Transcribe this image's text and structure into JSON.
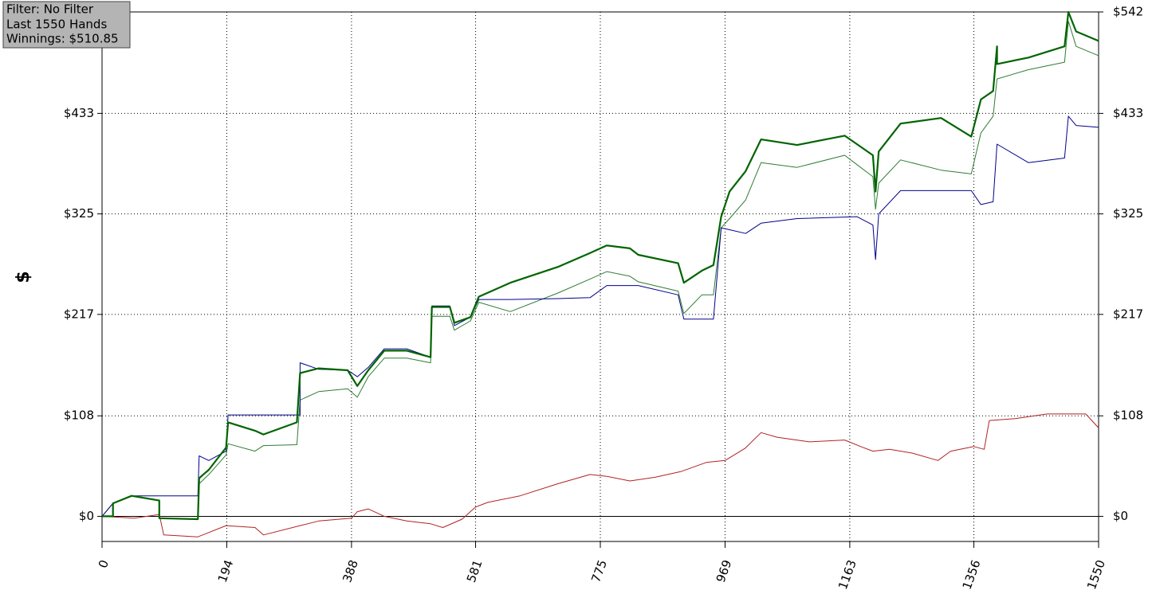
{
  "chart_data": {
    "type": "line",
    "annotations": [
      "Filter: No Filter",
      "Last 1550 Hands",
      "Winnings: $510.85"
    ],
    "y_label": "$",
    "xlim": [
      0,
      1550
    ],
    "xticks": [
      0,
      194,
      388,
      581,
      775,
      969,
      1163,
      1356,
      1550
    ],
    "ylim": [
      -27,
      542
    ],
    "yticks": [
      {
        "value": 0,
        "label": "$0"
      },
      {
        "value": 108,
        "label": "$108"
      },
      {
        "value": 217,
        "label": "$217"
      },
      {
        "value": 325,
        "label": "$325"
      },
      {
        "value": 433,
        "label": "$433"
      },
      {
        "value": 542,
        "label": "$542"
      }
    ],
    "zero_line": true,
    "grid": true,
    "series": [
      {
        "color": "#2e7d32",
        "line_width": 1,
        "x": [
          0,
          17,
          46,
          89,
          89,
          149,
          151,
          166,
          193,
          196,
          238,
          251,
          303,
          308,
          337,
          382,
          397,
          414,
          439,
          474,
          511,
          513,
          541,
          548,
          573,
          586,
          635,
          709,
          759,
          785,
          821,
          834,
          896,
          905,
          933,
          951,
          963,
          976,
          1001,
          1025,
          1081,
          1155,
          1174,
          1199,
          1203,
          1208,
          1242,
          1305,
          1352,
          1367,
          1386,
          1392,
          1441,
          1497,
          1503,
          1515,
          1550
        ],
        "values": [
          0,
          14,
          22,
          17,
          -2,
          -3,
          35,
          45,
          66,
          78,
          70,
          76,
          77,
          125,
          134,
          137,
          128,
          150,
          170,
          170,
          165,
          215,
          215,
          200,
          210,
          230,
          220,
          240,
          255,
          263,
          258,
          252,
          242,
          218,
          238,
          238,
          310,
          320,
          340,
          380,
          375,
          388,
          378,
          365,
          330,
          358,
          383,
          372,
          368,
          412,
          430,
          470,
          480,
          488,
          532,
          505,
          495
        ]
      },
      {
        "color": "#00008b",
        "line_width": 1,
        "x": [
          0,
          17,
          46,
          149,
          151,
          166,
          193,
          196,
          308,
          308,
          337,
          382,
          397,
          414,
          439,
          474,
          511,
          513,
          541,
          548,
          573,
          586,
          635,
          709,
          759,
          785,
          834,
          896,
          905,
          951,
          963,
          976,
          1001,
          1025,
          1081,
          1174,
          1199,
          1203,
          1208,
          1242,
          1352,
          1367,
          1386,
          1392,
          1441,
          1497,
          1503,
          1515,
          1550
        ],
        "values": [
          0,
          14,
          22,
          22,
          65,
          60,
          70,
          109,
          109,
          165,
          158,
          157,
          150,
          160,
          180,
          180,
          171,
          226,
          226,
          205,
          214,
          233,
          233,
          234,
          235,
          248,
          248,
          238,
          212,
          212,
          310,
          308,
          304,
          315,
          320,
          322,
          313,
          276,
          325,
          350,
          350,
          335,
          338,
          400,
          380,
          385,
          430,
          420,
          418
        ]
      },
      {
        "color": "#b22222",
        "line_width": 1,
        "x": [
          0,
          50,
          89,
          96,
          149,
          193,
          238,
          251,
          308,
          337,
          388,
          397,
          414,
          439,
          474,
          511,
          530,
          560,
          581,
          600,
          650,
          709,
          759,
          785,
          821,
          860,
          900,
          940,
          969,
          1000,
          1025,
          1050,
          1100,
          1155,
          1180,
          1199,
          1225,
          1260,
          1300,
          1320,
          1356,
          1372,
          1380,
          1420,
          1470,
          1530,
          1550
        ],
        "values": [
          0,
          -2,
          2,
          -20,
          -22,
          -10,
          -12,
          -20,
          -10,
          -5,
          -2,
          5,
          8,
          0,
          -5,
          -8,
          -12,
          -3,
          10,
          15,
          22,
          35,
          45,
          43,
          38,
          42,
          48,
          58,
          60,
          73,
          90,
          85,
          80,
          82,
          75,
          70,
          72,
          68,
          60,
          70,
          75,
          72,
          103,
          105,
          110,
          110,
          95
        ]
      },
      {
        "color": "#006400",
        "line_width": 2.2,
        "x": [
          0,
          17,
          17,
          46,
          89,
          89,
          149,
          151,
          166,
          193,
          196,
          238,
          251,
          303,
          308,
          337,
          382,
          397,
          414,
          439,
          474,
          511,
          513,
          541,
          548,
          573,
          586,
          635,
          709,
          759,
          785,
          821,
          834,
          896,
          905,
          933,
          951,
          963,
          976,
          1001,
          1025,
          1081,
          1155,
          1174,
          1199,
          1203,
          1208,
          1242,
          1305,
          1352,
          1367,
          1386,
          1392,
          1392,
          1441,
          1497,
          1503,
          1515,
          1550
        ],
        "values": [
          0,
          0,
          14,
          22,
          17,
          -2,
          -3,
          41,
          50,
          74,
          101,
          92,
          88,
          101,
          154,
          159,
          157,
          140,
          157,
          178,
          178,
          171,
          225,
          225,
          208,
          214,
          236,
          251,
          268,
          283,
          291,
          288,
          281,
          272,
          251,
          264,
          270,
          322,
          349,
          371,
          405,
          399,
          409,
          400,
          388,
          349,
          392,
          422,
          428,
          408,
          448,
          457,
          505,
          486,
          493,
          505,
          542,
          521,
          510.85
        ]
      }
    ]
  }
}
